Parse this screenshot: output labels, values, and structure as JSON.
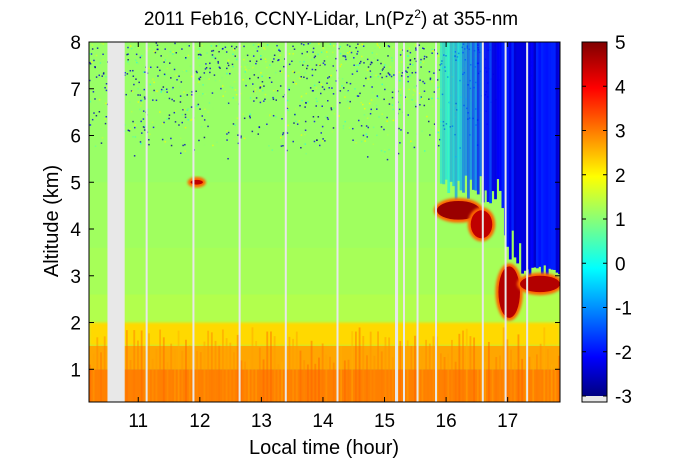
{
  "chart_data": {
    "type": "heatmap",
    "title": "2011 Feb16, CCNY-Lidar, Ln(Pz",
    "title_superscript": "2",
    "title_suffix": ") at 355-nm",
    "xlabel": "Local time (hour)",
    "ylabel": "Altitude (km)",
    "xlim": [
      10.2,
      17.85
    ],
    "ylim": [
      0.3,
      8.0
    ],
    "xticks": [
      11,
      12,
      13,
      14,
      15,
      16,
      17
    ],
    "yticks": [
      1,
      2,
      3,
      4,
      5,
      6,
      7,
      8
    ],
    "colorbar": {
      "colormap": "jet",
      "range": [
        -3,
        5
      ],
      "ticks": [
        -3,
        -2,
        -1,
        0,
        1,
        2,
        3,
        4,
        5
      ]
    },
    "missing_data_gaps_hours": [
      [
        10.5,
        10.78
      ],
      [
        11.12,
        11.15
      ],
      [
        11.88,
        11.91
      ],
      [
        12.63,
        12.66
      ],
      [
        13.38,
        13.41
      ],
      [
        14.22,
        14.25
      ],
      [
        15.17,
        15.22
      ],
      [
        15.3,
        15.33
      ],
      [
        15.52,
        15.55
      ],
      [
        15.82,
        15.85
      ],
      [
        16.58,
        16.61
      ],
      [
        16.95,
        16.98
      ],
      [
        17.3,
        17.33
      ]
    ],
    "features": [
      {
        "name": "aerosol boundary layer",
        "time": [
          10.2,
          17.85
        ],
        "altitude_km": [
          0.3,
          1.9
        ],
        "value": 3.0
      },
      {
        "name": "free troposphere",
        "time": [
          10.2,
          17.85
        ],
        "altitude_km": [
          1.9,
          8.0
        ],
        "value": 1.2
      },
      {
        "name": "cloud",
        "time": [
          15.85,
          16.55
        ],
        "altitude_km": [
          4.2,
          4.6
        ],
        "value": 4.8
      },
      {
        "name": "cloud",
        "time": [
          16.4,
          16.75
        ],
        "altitude_km": [
          3.8,
          4.4
        ],
        "value": 4.5
      },
      {
        "name": "cloud",
        "time": [
          16.85,
          17.2
        ],
        "altitude_km": [
          2.1,
          3.2
        ],
        "value": 4.6
      },
      {
        "name": "cloud",
        "time": [
          17.2,
          17.85
        ],
        "altitude_km": [
          2.65,
          3.0
        ],
        "value": 4.6
      },
      {
        "name": "small cloud",
        "time": [
          11.85,
          12.05
        ],
        "altitude_km": [
          4.95,
          5.05
        ],
        "value": 4.5
      },
      {
        "name": "attenuated signal above cloud",
        "time": [
          15.9,
          17.85
        ],
        "altitude_km": [
          4.6,
          8.0
        ],
        "value": -2.5
      }
    ]
  }
}
